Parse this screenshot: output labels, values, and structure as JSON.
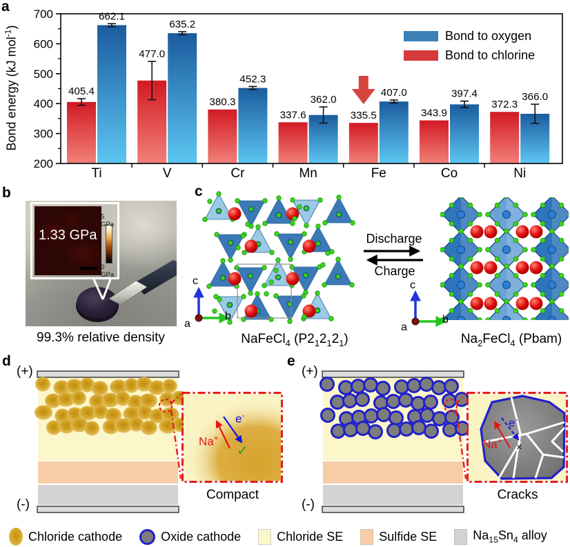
{
  "colors": {
    "bar_blue_top": "#1b5b9e",
    "bar_blue_bottom": "#5cc6f2",
    "legend_blue": "#3a7fb5",
    "bar_red_top": "#d11a23",
    "bar_red_bottom": "#f28079",
    "legend_red": "#d63a3b",
    "highlight_arrow": "#d6453d",
    "chloride_cathode": "#d8a72c",
    "oxide_cathode_fill": "#7d7d7d",
    "oxide_cathode_ring": "#2020cc",
    "chloride_se": "#fcf6cb",
    "sulfide_se": "#f6cda6",
    "alloy": "#d3d3d3",
    "electrode": "#dcdcdc",
    "inset_border": "#e51c1c",
    "na_label": "#e81313",
    "e_label": "#1414e0",
    "check_green": "#1fa42a",
    "tetra_dark": "#2e6fb2",
    "tetra_light": "#93c7e3",
    "octa_dark": "#3075bb",
    "octa_light": "#6aa3d6",
    "atom_green": "#3fd31f",
    "atom_red": "#e01010",
    "atom_blue": "#2f7fd4",
    "axis_c_blue": "#2233dd",
    "axis_b_green": "#22c51e",
    "axis_a_dot": "#7a1010"
  },
  "chart_data": {
    "type": "bar",
    "categories": [
      "Ti",
      "V",
      "Cr",
      "Mn",
      "Fe",
      "Co",
      "Ni"
    ],
    "series": [
      {
        "name": "Bond to chlorine",
        "side": "left",
        "values": [
          405.4,
          477.0,
          380.3,
          337.6,
          335.5,
          343.9,
          372.3
        ],
        "errors": [
          11,
          64,
          0,
          0,
          0,
          0,
          0
        ]
      },
      {
        "name": "Bond to oxygen",
        "side": "right",
        "values": [
          662.1,
          635.2,
          452.3,
          362.0,
          407.0,
          397.4,
          366.0
        ],
        "errors": [
          5,
          5,
          5,
          27,
          5,
          11,
          32
        ]
      }
    ],
    "legend": {
      "items": [
        {
          "label": "Bond to oxygen",
          "color": "#3a7fb5"
        },
        {
          "label": "Bond to chlorine",
          "color": "#d63a3b"
        }
      ]
    },
    "ylabel_parts": [
      {
        "t": "Bond energy (kJ mol"
      },
      {
        "sup": "-1"
      },
      {
        "t": ")"
      }
    ],
    "ylim": [
      200,
      700
    ],
    "yticks": [
      200,
      300,
      400,
      500,
      600,
      700
    ],
    "grid": false,
    "legend_position": "top-right",
    "highlight": {
      "category": "Fe",
      "series": "Bond to chlorine",
      "marker": "down-arrow"
    }
  },
  "panels": {
    "a": {
      "label": "a"
    },
    "b": {
      "label": "b",
      "inset_value": "1.33 GPa",
      "scale_max": "5 GPa",
      "scale_min": "0 GPa",
      "caption": "99.3% relative density"
    },
    "c": {
      "label": "c",
      "discharge": "Discharge",
      "charge": "Charge",
      "left_formula_parts": [
        {
          "t": "NaFeCl"
        },
        {
          "sub": "4"
        },
        {
          "t": " (P2"
        },
        {
          "sub": "1"
        },
        {
          "t": "2"
        },
        {
          "sub": "1"
        },
        {
          "t": "2"
        },
        {
          "sub": "1"
        },
        {
          "t": ")"
        }
      ],
      "right_formula_parts": [
        {
          "t": "Na"
        },
        {
          "sub": "2"
        },
        {
          "t": "FeCl"
        },
        {
          "sub": "4"
        },
        {
          "t": " (Pbam)"
        }
      ],
      "axis": {
        "a": "a",
        "b": "b",
        "c": "c"
      }
    },
    "d": {
      "label": "d",
      "positive": "(+)",
      "negative": "(-)",
      "caption": "Compact",
      "na_parts": [
        {
          "t": "Na"
        },
        {
          "sup": "+"
        }
      ],
      "e_parts": [
        {
          "t": "e"
        },
        {
          "sup": "-"
        }
      ],
      "check": "✓"
    },
    "e": {
      "label": "e",
      "positive": "(+)",
      "negative": "(-)",
      "caption": "Cracks",
      "na_parts": [
        {
          "t": "Na"
        },
        {
          "sup": "+"
        }
      ],
      "e_parts": [
        {
          "t": "e"
        },
        {
          "sup": "-"
        }
      ],
      "cross": "×"
    }
  },
  "bottom_legend": {
    "items": [
      {
        "label_parts": [
          {
            "t": "Chloride cathode"
          }
        ],
        "swatch": "chloride-cathode"
      },
      {
        "label_parts": [
          {
            "t": "Oxide cathode"
          }
        ],
        "swatch": "oxide-cathode"
      },
      {
        "label_parts": [
          {
            "t": "Chloride SE"
          }
        ],
        "swatch": "chloride-se"
      },
      {
        "label_parts": [
          {
            "t": "Sulfide SE"
          }
        ],
        "swatch": "sulfide-se"
      },
      {
        "label_parts": [
          {
            "t": "Na"
          },
          {
            "sub": "15"
          },
          {
            "t": "Sn"
          },
          {
            "sub": "4"
          },
          {
            "t": " alloy"
          }
        ],
        "swatch": "alloy"
      }
    ]
  }
}
